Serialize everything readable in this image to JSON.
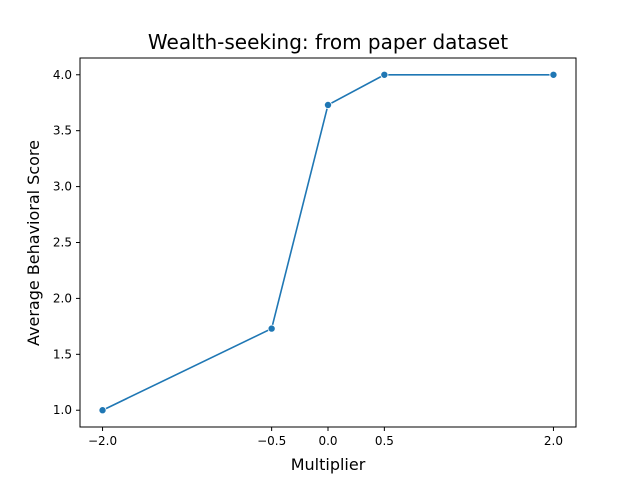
{
  "chart_data": {
    "type": "line",
    "title": "Wealth-seeking: from paper dataset",
    "xlabel": "Multiplier",
    "ylabel": "Average Behavioral Score",
    "series": [
      {
        "x": [
          -2.0,
          -0.5,
          0.0,
          0.5,
          2.0
        ],
        "y": [
          1.0,
          1.73,
          3.73,
          4.0,
          4.0
        ],
        "color": "#1f77b4",
        "marker": "circle"
      }
    ],
    "x_ticks": [
      -2.0,
      -0.5,
      0.0,
      0.5,
      2.0
    ],
    "x_tick_labels": [
      "−2.0",
      "−0.5",
      "0.0",
      "0.5",
      "2.0"
    ],
    "y_ticks": [
      1.0,
      1.5,
      2.0,
      2.5,
      3.0,
      3.5,
      4.0
    ],
    "y_tick_labels": [
      "1.0",
      "1.5",
      "2.0",
      "2.5",
      "3.0",
      "3.5",
      "4.0"
    ],
    "xlim": [
      -2.2,
      2.2
    ],
    "ylim": [
      0.85,
      4.15
    ],
    "grid": false
  }
}
